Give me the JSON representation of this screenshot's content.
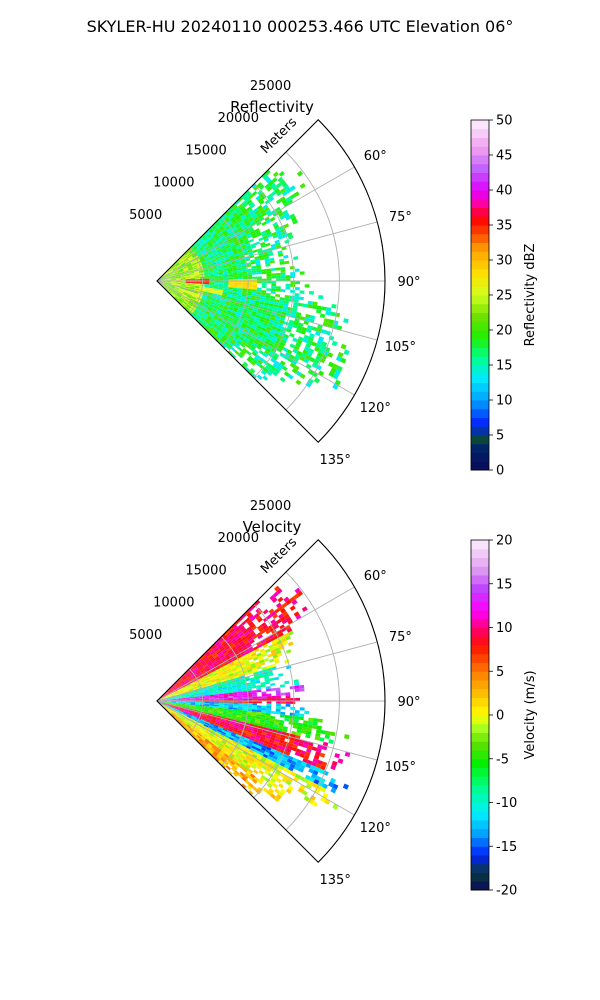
{
  "figure": {
    "suptitle": "SKYLER-HU  20240110  000253.466 UTC Elevation 06°"
  },
  "chart_data": [
    {
      "type": "heatmap",
      "projection": "polar-sector",
      "title": "Reflectivity",
      "range_label": "Meters",
      "range_ticks": [
        5000,
        10000,
        15000,
        20000,
        25000
      ],
      "range_max": 25000,
      "azimuth_ticks": [
        "60°",
        "75°",
        "90°",
        "105°",
        "120°",
        "135°"
      ],
      "azimuth_range_deg": [
        45,
        135
      ],
      "grid": true,
      "colorbar": {
        "label": "Reflectivity dBZ",
        "range": [
          0,
          50
        ],
        "ticks": [
          0,
          5,
          10,
          15,
          20,
          25,
          30,
          35,
          40,
          45,
          50
        ],
        "stops": [
          [
            0,
            "#0a0a5a"
          ],
          [
            0.06,
            "#00206a"
          ],
          [
            0.09,
            "#0a4a3a"
          ],
          [
            0.13,
            "#0020ff"
          ],
          [
            0.2,
            "#00a0ff"
          ],
          [
            0.26,
            "#00e8ff"
          ],
          [
            0.32,
            "#00ff90"
          ],
          [
            0.38,
            "#20f000"
          ],
          [
            0.44,
            "#70e000"
          ],
          [
            0.5,
            "#d0ff20"
          ],
          [
            0.56,
            "#ffe000"
          ],
          [
            0.63,
            "#ffa000"
          ],
          [
            0.69,
            "#ff3000"
          ],
          [
            0.72,
            "#ff0000"
          ],
          [
            0.76,
            "#ff00a0"
          ],
          [
            0.8,
            "#e000ff"
          ],
          [
            0.86,
            "#c060ff"
          ],
          [
            0.92,
            "#f0a0f0"
          ],
          [
            1,
            "#fff0ff"
          ]
        ]
      },
      "echo_region": {
        "az_from_deg": 45,
        "az_to_deg": 135,
        "range_extent_m": [
          16000,
          19000,
          17000,
          15000,
          14000,
          15000,
          16000,
          21000,
          21000,
          23000,
          17000,
          14000
        ]
      },
      "features": [
        {
          "az_deg": 91,
          "range_m": 4500,
          "value": 36
        },
        {
          "az_deg": 92,
          "range_m": 9500,
          "value": 29
        },
        {
          "az_deg": 100,
          "range_m": 6000,
          "value": 27
        },
        {
          "az_deg": 110,
          "range_m": 4000,
          "value": 27
        }
      ]
    },
    {
      "type": "heatmap",
      "projection": "polar-sector",
      "title": "Velocity",
      "range_label": "Meters",
      "range_ticks": [
        5000,
        10000,
        15000,
        20000,
        25000
      ],
      "range_max": 25000,
      "azimuth_ticks": [
        "60°",
        "75°",
        "90°",
        "105°",
        "120°",
        "135°"
      ],
      "azimuth_range_deg": [
        45,
        135
      ],
      "grid": true,
      "colorbar": {
        "label": "Velocity (m/s)",
        "range": [
          -20,
          20
        ],
        "ticks": [
          -20,
          -15,
          -10,
          -5,
          0,
          5,
          10,
          15,
          20
        ],
        "stops": [
          [
            0,
            "#0a0a5a"
          ],
          [
            0.05,
            "#0a3a3a"
          ],
          [
            0.1,
            "#0020ff"
          ],
          [
            0.16,
            "#00a0ff"
          ],
          [
            0.22,
            "#00f0ff"
          ],
          [
            0.3,
            "#00ff80"
          ],
          [
            0.36,
            "#00f000"
          ],
          [
            0.42,
            "#60e000"
          ],
          [
            0.46,
            "#a0ff20"
          ],
          [
            0.5,
            "#ffff00"
          ],
          [
            0.56,
            "#ffc000"
          ],
          [
            0.62,
            "#ff8000"
          ],
          [
            0.7,
            "#ff1000"
          ],
          [
            0.74,
            "#ff0060"
          ],
          [
            0.8,
            "#ff00ff"
          ],
          [
            0.86,
            "#c040ff"
          ],
          [
            0.92,
            "#e0a0f0"
          ],
          [
            1,
            "#fff0ff"
          ]
        ]
      },
      "echo_region": {
        "az_from_deg": 45,
        "az_to_deg": 135,
        "range_extent_m": [
          16000,
          19000,
          17000,
          15000,
          14000,
          15000,
          16000,
          21000,
          21000,
          23000,
          17000,
          14000
        ]
      },
      "velocity_bands": [
        {
          "az_from_deg": 45,
          "az_to_deg": 63,
          "value": 9
        },
        {
          "az_from_deg": 63,
          "az_to_deg": 74,
          "value": 0
        },
        {
          "az_from_deg": 74,
          "az_to_deg": 84,
          "value": -10
        },
        {
          "az_from_deg": 84,
          "az_to_deg": 89,
          "value": 13
        },
        {
          "az_from_deg": 89,
          "az_to_deg": 91,
          "value": 9
        },
        {
          "az_from_deg": 91,
          "az_to_deg": 96,
          "value": -12
        },
        {
          "az_from_deg": 96,
          "az_to_deg": 104,
          "value": -5
        },
        {
          "az_from_deg": 104,
          "az_to_deg": 112,
          "value": 9
        },
        {
          "az_from_deg": 112,
          "az_to_deg": 118,
          "value": -13
        },
        {
          "az_from_deg": 118,
          "az_to_deg": 127,
          "value": 0
        },
        {
          "az_from_deg": 127,
          "az_to_deg": 135,
          "value": 3
        }
      ]
    }
  ]
}
